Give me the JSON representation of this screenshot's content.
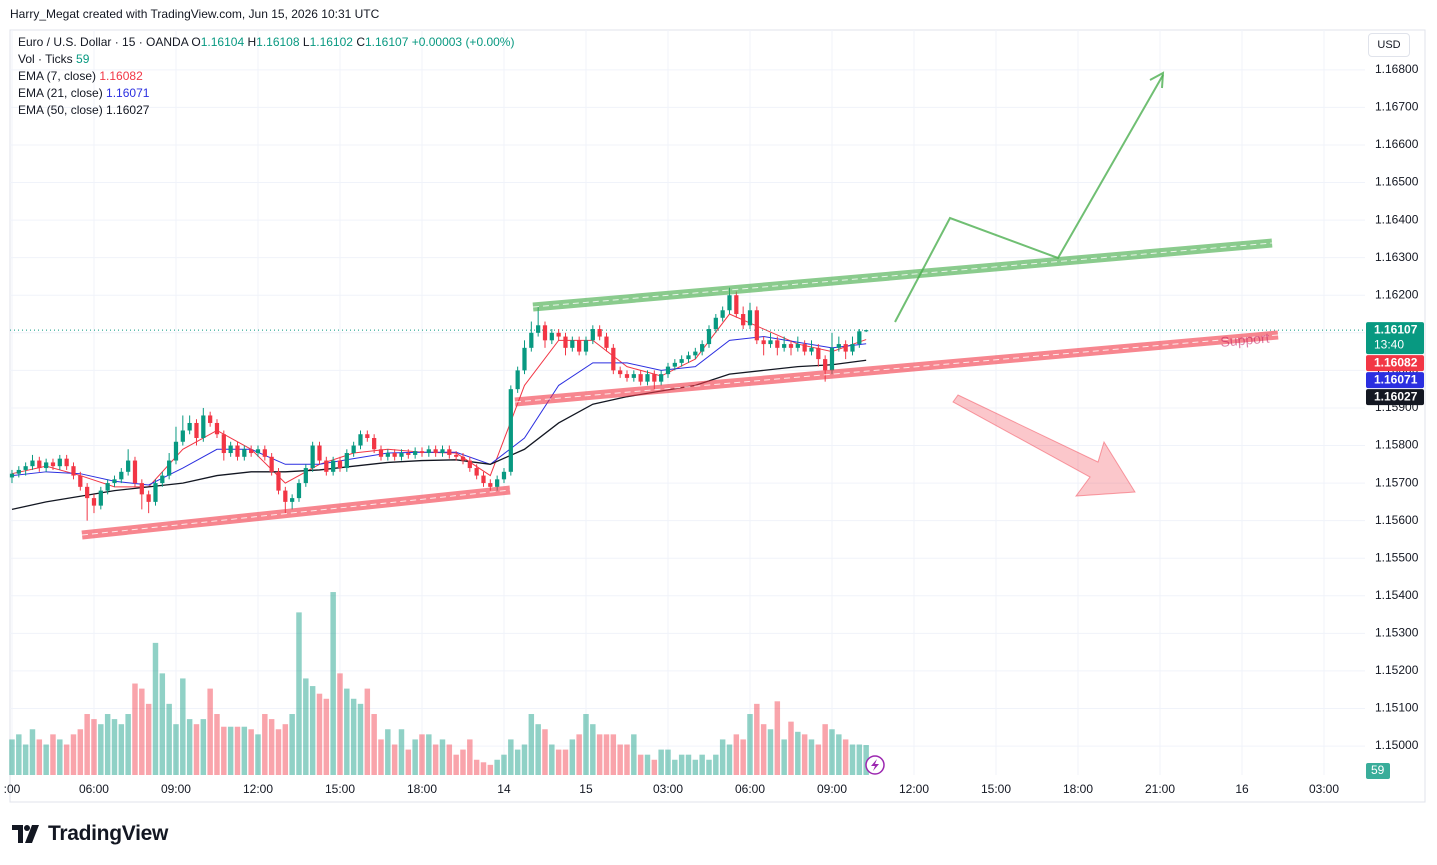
{
  "header": {
    "credit": "Harry_Megat created with TradingView.com, Jun 15, 2026 10:31 UTC"
  },
  "footer": {
    "logo": "TradingView"
  },
  "chart_data": {
    "type": "candlestick",
    "symbol": "Euro / U.S. Dollar · 15 · OANDA",
    "ohlc_labels": [
      "O",
      "H",
      "L",
      "C"
    ],
    "change": "+0.00003 (+0.00%)",
    "currency": "USD",
    "countdown": "13:40",
    "annotation": "Support",
    "up_color": "#089981",
    "down_color": "#f23645",
    "ylim": [
      1.14923,
      1.16906
    ],
    "xlim": [
      -0.29,
      198.0
    ],
    "vlim": [
      0,
      1466
    ],
    "yticks": [
      {
        "value": 1.15,
        "label": "1.15000"
      },
      {
        "value": 1.151,
        "label": "1.15100"
      },
      {
        "value": 1.152,
        "label": "1.15200"
      },
      {
        "value": 1.153,
        "label": "1.15300"
      },
      {
        "value": 1.154,
        "label": "1.15400"
      },
      {
        "value": 1.155,
        "label": "1.15500"
      },
      {
        "value": 1.156,
        "label": "1.15600"
      },
      {
        "value": 1.157,
        "label": "1.15700"
      },
      {
        "value": 1.158,
        "label": "1.15800"
      },
      {
        "value": 1.159,
        "label": "1.15900"
      },
      {
        "value": 1.16,
        "label": "1.16000"
      },
      {
        "value": 1.161,
        "label": "1.16100"
      },
      {
        "value": 1.162,
        "label": "1.16200"
      },
      {
        "value": 1.163,
        "label": "1.16300"
      },
      {
        "value": 1.164,
        "label": "1.16400"
      },
      {
        "value": 1.165,
        "label": "1.16500"
      },
      {
        "value": 1.166,
        "label": "1.16600"
      },
      {
        "value": 1.167,
        "label": "1.16700"
      },
      {
        "value": 1.168,
        "label": "1.16800"
      }
    ],
    "xticks": [
      {
        "value": 0,
        "label": ":00"
      },
      {
        "value": 12,
        "label": "06:00"
      },
      {
        "value": 24,
        "label": "09:00"
      },
      {
        "value": 36,
        "label": "12:00"
      },
      {
        "value": 48,
        "label": "15:00"
      },
      {
        "value": 60,
        "label": "18:00"
      },
      {
        "value": 72,
        "label": "14"
      },
      {
        "value": 84,
        "label": "15"
      },
      {
        "value": 96,
        "label": "03:00"
      },
      {
        "value": 108,
        "label": "06:00"
      },
      {
        "value": 120,
        "label": "09:00"
      },
      {
        "value": 132,
        "label": "12:00"
      },
      {
        "value": 144,
        "label": "15:00"
      },
      {
        "value": 156,
        "label": "18:00"
      },
      {
        "value": 168,
        "label": "21:00"
      },
      {
        "value": 180,
        "label": "16"
      },
      {
        "value": 192,
        "label": "03:00"
      }
    ],
    "ohlc": [
      [
        1.15715,
        1.15735,
        1.157,
        1.15725
      ],
      [
        1.15725,
        1.15745,
        1.15715,
        1.15735
      ],
      [
        1.15735,
        1.15755,
        1.1572,
        1.15745
      ],
      [
        1.15745,
        1.15775,
        1.15735,
        1.1576
      ],
      [
        1.1576,
        1.1577,
        1.1573,
        1.1574
      ],
      [
        1.1574,
        1.15765,
        1.1573,
        1.15755
      ],
      [
        1.15755,
        1.15765,
        1.15735,
        1.15745
      ],
      [
        1.15745,
        1.15775,
        1.15735,
        1.15765
      ],
      [
        1.15765,
        1.15775,
        1.15735,
        1.15745
      ],
      [
        1.15745,
        1.15755,
        1.1571,
        1.1572
      ],
      [
        1.1572,
        1.1573,
        1.1568,
        1.1569
      ],
      [
        1.1569,
        1.157,
        1.156,
        1.1566
      ],
      [
        1.1566,
        1.1567,
        1.1562,
        1.1564
      ],
      [
        1.1564,
        1.1569,
        1.1563,
        1.1568
      ],
      [
        1.1568,
        1.1571,
        1.1567,
        1.157
      ],
      [
        1.157,
        1.1572,
        1.1569,
        1.1571
      ],
      [
        1.1571,
        1.1574,
        1.157,
        1.1573
      ],
      [
        1.1573,
        1.1579,
        1.1572,
        1.1576
      ],
      [
        1.1576,
        1.1577,
        1.1569,
        1.157
      ],
      [
        1.157,
        1.1571,
        1.1563,
        1.1567
      ],
      [
        1.1567,
        1.1568,
        1.1562,
        1.1565
      ],
      [
        1.1565,
        1.1571,
        1.1564,
        1.157
      ],
      [
        1.157,
        1.1573,
        1.1569,
        1.1572
      ],
      [
        1.1572,
        1.1578,
        1.1571,
        1.1576
      ],
      [
        1.1576,
        1.1585,
        1.1575,
        1.1581
      ],
      [
        1.1581,
        1.1588,
        1.158,
        1.1584
      ],
      [
        1.1584,
        1.1588,
        1.1583,
        1.1586
      ],
      [
        1.1586,
        1.1587,
        1.158,
        1.1582
      ],
      [
        1.1582,
        1.159,
        1.1581,
        1.1588
      ],
      [
        1.1588,
        1.1589,
        1.1585,
        1.1586
      ],
      [
        1.1586,
        1.1587,
        1.1582,
        1.1583
      ],
      [
        1.1583,
        1.1584,
        1.1576,
        1.1578
      ],
      [
        1.1578,
        1.1581,
        1.1577,
        1.158
      ],
      [
        1.158,
        1.1581,
        1.1576,
        1.1577
      ],
      [
        1.1577,
        1.158,
        1.1576,
        1.1579
      ],
      [
        1.1579,
        1.158,
        1.1577,
        1.1578
      ],
      [
        1.1578,
        1.158,
        1.1577,
        1.1579
      ],
      [
        1.1579,
        1.158,
        1.1576,
        1.1577
      ],
      [
        1.1577,
        1.1578,
        1.1572,
        1.1573
      ],
      [
        1.1573,
        1.1574,
        1.1567,
        1.1568
      ],
      [
        1.1568,
        1.1569,
        1.1562,
        1.1565
      ],
      [
        1.1565,
        1.1567,
        1.1563,
        1.1566
      ],
      [
        1.1566,
        1.1571,
        1.1565,
        1.157
      ],
      [
        1.157,
        1.1575,
        1.1569,
        1.1574
      ],
      [
        1.1574,
        1.1581,
        1.1573,
        1.158
      ],
      [
        1.158,
        1.1581,
        1.1575,
        1.1576
      ],
      [
        1.1576,
        1.1577,
        1.1572,
        1.1573
      ],
      [
        1.1573,
        1.1577,
        1.1572,
        1.1576
      ],
      [
        1.1576,
        1.1577,
        1.1573,
        1.1574
      ],
      [
        1.1574,
        1.1579,
        1.1573,
        1.1578
      ],
      [
        1.1578,
        1.1581,
        1.1577,
        1.158
      ],
      [
        1.158,
        1.1584,
        1.1579,
        1.1583
      ],
      [
        1.1583,
        1.1584,
        1.1581,
        1.1582
      ],
      [
        1.1582,
        1.1583,
        1.1578,
        1.1579
      ],
      [
        1.1579,
        1.158,
        1.1576,
        1.1577
      ],
      [
        1.1577,
        1.1579,
        1.1576,
        1.1578
      ],
      [
        1.1578,
        1.1579,
        1.1576,
        1.1577
      ],
      [
        1.1577,
        1.1579,
        1.1576,
        1.1578
      ],
      [
        1.1578,
        1.1579,
        1.15765,
        1.15775
      ],
      [
        1.15775,
        1.15795,
        1.15765,
        1.15785
      ],
      [
        1.15785,
        1.15795,
        1.1577,
        1.1578
      ],
      [
        1.1578,
        1.158,
        1.1577,
        1.1579
      ],
      [
        1.1579,
        1.158,
        1.1577,
        1.1578
      ],
      [
        1.1578,
        1.158,
        1.1577,
        1.1579
      ],
      [
        1.1579,
        1.158,
        1.15765,
        1.15775
      ],
      [
        1.15775,
        1.15785,
        1.1576,
        1.1577
      ],
      [
        1.1577,
        1.1578,
        1.1575,
        1.1576
      ],
      [
        1.1576,
        1.1577,
        1.1573,
        1.1574
      ],
      [
        1.1574,
        1.1575,
        1.1571,
        1.1572
      ],
      [
        1.1572,
        1.1573,
        1.1569,
        1.157
      ],
      [
        1.157,
        1.1571,
        1.1568,
        1.1569
      ],
      [
        1.1569,
        1.1572,
        1.1568,
        1.1571
      ],
      [
        1.1571,
        1.1574,
        1.157,
        1.1573
      ],
      [
        1.1573,
        1.1596,
        1.1572,
        1.1595
      ],
      [
        1.1595,
        1.1601,
        1.1594,
        1.16
      ],
      [
        1.16,
        1.1608,
        1.1599,
        1.1606
      ],
      [
        1.1606,
        1.1613,
        1.1605,
        1.161
      ],
      [
        1.161,
        1.1617,
        1.1609,
        1.1612
      ],
      [
        1.1612,
        1.1613,
        1.1606,
        1.1608
      ],
      [
        1.1608,
        1.1611,
        1.1607,
        1.161
      ],
      [
        1.161,
        1.1611,
        1.1608,
        1.1609
      ],
      [
        1.1609,
        1.161,
        1.1604,
        1.1606
      ],
      [
        1.1606,
        1.1609,
        1.1605,
        1.1608
      ],
      [
        1.1608,
        1.1609,
        1.1604,
        1.1605
      ],
      [
        1.1605,
        1.1609,
        1.1604,
        1.1608
      ],
      [
        1.1608,
        1.1612,
        1.1607,
        1.1611
      ],
      [
        1.1611,
        1.1612,
        1.1608,
        1.1609
      ],
      [
        1.1609,
        1.161,
        1.1605,
        1.1606
      ],
      [
        1.1606,
        1.1607,
        1.1599,
        1.16
      ],
      [
        1.16,
        1.1601,
        1.1598,
        1.1599
      ],
      [
        1.1599,
        1.16,
        1.1597,
        1.1598
      ],
      [
        1.1598,
        1.16,
        1.1597,
        1.1599
      ],
      [
        1.1599,
        1.16,
        1.1596,
        1.1597
      ],
      [
        1.1597,
        1.16,
        1.1596,
        1.1599
      ],
      [
        1.1599,
        1.16,
        1.1595,
        1.1597
      ],
      [
        1.1597,
        1.16,
        1.1596,
        1.1599
      ],
      [
        1.1599,
        1.1602,
        1.1598,
        1.1601
      ],
      [
        1.1601,
        1.1603,
        1.16,
        1.1602
      ],
      [
        1.1602,
        1.1604,
        1.1601,
        1.1603
      ],
      [
        1.1603,
        1.1605,
        1.1602,
        1.1604
      ],
      [
        1.1604,
        1.1606,
        1.1603,
        1.1605
      ],
      [
        1.1605,
        1.1608,
        1.1604,
        1.1607
      ],
      [
        1.1607,
        1.1612,
        1.1606,
        1.1611
      ],
      [
        1.1611,
        1.1615,
        1.161,
        1.1614
      ],
      [
        1.1614,
        1.1617,
        1.1613,
        1.1616
      ],
      [
        1.1616,
        1.1622,
        1.1615,
        1.162
      ],
      [
        1.162,
        1.1621,
        1.1614,
        1.1615
      ],
      [
        1.1615,
        1.1617,
        1.1611,
        1.1612
      ],
      [
        1.1612,
        1.1618,
        1.1611,
        1.1616
      ],
      [
        1.1616,
        1.1617,
        1.1607,
        1.1608
      ],
      [
        1.1608,
        1.1609,
        1.1604,
        1.1607
      ],
      [
        1.1607,
        1.161,
        1.1606,
        1.1608
      ],
      [
        1.1608,
        1.1609,
        1.1604,
        1.1606
      ],
      [
        1.1606,
        1.1609,
        1.1605,
        1.1607
      ],
      [
        1.1607,
        1.1608,
        1.1604,
        1.1606
      ],
      [
        1.1606,
        1.1609,
        1.1605,
        1.1607
      ],
      [
        1.1607,
        1.1608,
        1.1604,
        1.1605
      ],
      [
        1.1605,
        1.1608,
        1.1604,
        1.1606
      ],
      [
        1.1606,
        1.1607,
        1.1601,
        1.1603
      ],
      [
        1.1603,
        1.1604,
        1.1597,
        1.16
      ],
      [
        1.16,
        1.161,
        1.1599,
        1.1606
      ],
      [
        1.1606,
        1.1609,
        1.1605,
        1.1607
      ],
      [
        1.1607,
        1.1608,
        1.1603,
        1.1605
      ],
      [
        1.1605,
        1.1609,
        1.1604,
        1.1607
      ],
      [
        1.1607,
        1.1611,
        1.1606,
        1.16104
      ],
      [
        1.16104,
        1.16108,
        1.16102,
        1.16107
      ]
    ],
    "volume_label": "Vol · Ticks",
    "volume": [
      70,
      80,
      60,
      90,
      70,
      60,
      80,
      70,
      60,
      80,
      90,
      120,
      110,
      100,
      120,
      110,
      100,
      120,
      180,
      170,
      140,
      260,
      200,
      140,
      100,
      190,
      110,
      100,
      110,
      170,
      120,
      95,
      95,
      95,
      95,
      90,
      80,
      120,
      110,
      90,
      100,
      120,
      320,
      190,
      175,
      160,
      150,
      360,
      200,
      170,
      150,
      140,
      170,
      120,
      70,
      90,
      60,
      90,
      50,
      70,
      80,
      80,
      60,
      70,
      60,
      40,
      50,
      70,
      30,
      25,
      20,
      30,
      40,
      70,
      50,
      60,
      120,
      100,
      90,
      60,
      50,
      50,
      70,
      80,
      120,
      100,
      80,
      80,
      80,
      60,
      60,
      80,
      40,
      40,
      30,
      50,
      50,
      30,
      40,
      40,
      30,
      40,
      30,
      40,
      70,
      60,
      80,
      70,
      120,
      140,
      100,
      90,
      145,
      70,
      105,
      85,
      80,
      70,
      60,
      100,
      90,
      80,
      70,
      60,
      60,
      59
    ],
    "series": [
      {
        "name": "EMA (7, close)",
        "color": "#f23645",
        "x": [
          0,
          5,
          10,
          15,
          20,
          25,
          30,
          35,
          40,
          45,
          50,
          55,
          60,
          65,
          70,
          75,
          80,
          85,
          90,
          95,
          100,
          105,
          110,
          115,
          120,
          125
        ],
        "values": [
          1.15725,
          1.15745,
          1.1572,
          1.1569,
          1.1569,
          1.1579,
          1.1584,
          1.1579,
          1.157,
          1.1575,
          1.1578,
          1.1579,
          1.15782,
          1.1578,
          1.1572,
          1.1596,
          1.1608,
          1.1608,
          1.1601,
          1.15985,
          1.1603,
          1.1615,
          1.1611,
          1.1607,
          1.1605,
          1.16082
        ]
      },
      {
        "name": "EMA (21, close)",
        "color": "#2b2fe0",
        "x": [
          0,
          5,
          10,
          15,
          20,
          25,
          30,
          35,
          40,
          45,
          50,
          55,
          60,
          65,
          70,
          75,
          80,
          85,
          90,
          95,
          100,
          105,
          110,
          115,
          120,
          125
        ],
        "values": [
          1.1572,
          1.1573,
          1.15725,
          1.15705,
          1.15695,
          1.1574,
          1.1579,
          1.1579,
          1.1575,
          1.1575,
          1.15765,
          1.1578,
          1.15782,
          1.15782,
          1.1575,
          1.1582,
          1.1596,
          1.1602,
          1.1602,
          1.16,
          1.1601,
          1.1608,
          1.1609,
          1.16075,
          1.1606,
          1.16071
        ]
      },
      {
        "name": "EMA (50, close)",
        "color": "#131722",
        "x": [
          0,
          5,
          10,
          15,
          20,
          25,
          30,
          35,
          40,
          45,
          50,
          55,
          60,
          65,
          70,
          75,
          80,
          85,
          90,
          95,
          100,
          105,
          110,
          115,
          120,
          125
        ],
        "values": [
          1.1563,
          1.1565,
          1.15665,
          1.1568,
          1.1569,
          1.157,
          1.1572,
          1.1573,
          1.1573,
          1.15735,
          1.15745,
          1.15755,
          1.1576,
          1.15762,
          1.1575,
          1.1579,
          1.1586,
          1.1591,
          1.1593,
          1.15945,
          1.1596,
          1.1599,
          1.16,
          1.1601,
          1.16015,
          1.16027
        ]
      }
    ]
  }
}
